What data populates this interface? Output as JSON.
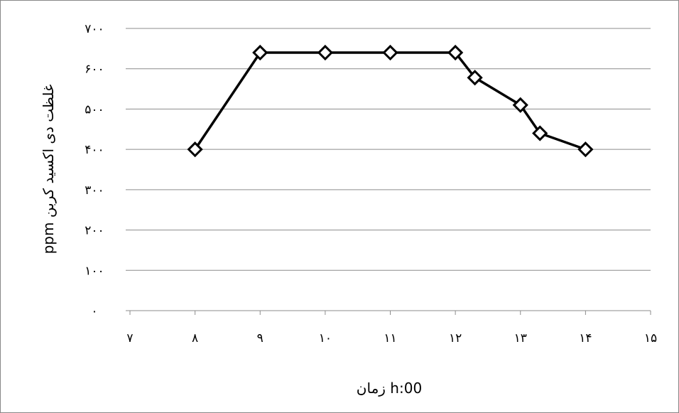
{
  "chart_data": {
    "type": "scatter",
    "title": "",
    "xlabel": "زمان h:00",
    "ylabel": "غلظت دی اکسید کربن ppm",
    "xlim": [
      7,
      15
    ],
    "ylim": [
      0,
      700
    ],
    "x_ticks": [
      7,
      8,
      9,
      10,
      11,
      12,
      13,
      14,
      15
    ],
    "x_tick_labels": [
      "۷",
      "۸",
      "۹",
      "۱۰",
      "۱۱",
      "۱۲",
      "۱۳",
      "۱۴",
      "۱۵"
    ],
    "y_ticks": [
      0,
      100,
      200,
      300,
      400,
      500,
      600,
      700
    ],
    "y_tick_labels": [
      "۰",
      "۱۰۰",
      "۲۰۰",
      "۳۰۰",
      "۴۰۰",
      "۵۰۰",
      "۶۰۰",
      "۷۰۰"
    ],
    "grid": true,
    "legend": "none",
    "series": [
      {
        "x": [
          8,
          9,
          10,
          11,
          12,
          12.3,
          13,
          13.3,
          14
        ],
        "y": [
          400,
          640,
          640,
          640,
          640,
          578,
          510,
          440,
          400
        ],
        "color": "#000000",
        "marker": "diamond"
      }
    ]
  }
}
